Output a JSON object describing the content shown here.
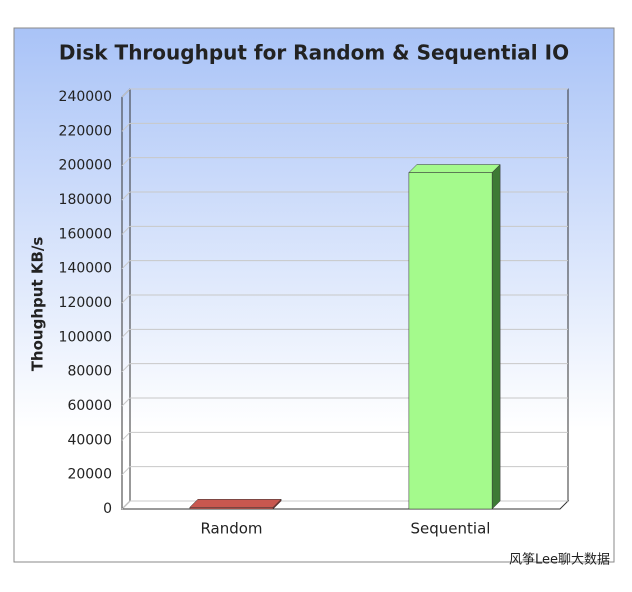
{
  "chart_data": {
    "type": "bar3d",
    "title": "Disk Throughput for Random & Sequential IO",
    "y_label": "Thoughput KB/s",
    "categories": [
      "Random",
      "Sequential"
    ],
    "values": [
      1000,
      196000
    ],
    "colors": [
      "#c8574f",
      "#a4fa8c"
    ],
    "side_colors": [
      "#7a2e2a",
      "#3d7a35"
    ],
    "ylim": [
      0,
      240000
    ],
    "yticks": [
      0,
      20000,
      40000,
      60000,
      80000,
      100000,
      120000,
      140000,
      160000,
      180000,
      200000,
      220000,
      240000
    ],
    "grid": true
  },
  "watermark": "风筝Lee聊大数据"
}
